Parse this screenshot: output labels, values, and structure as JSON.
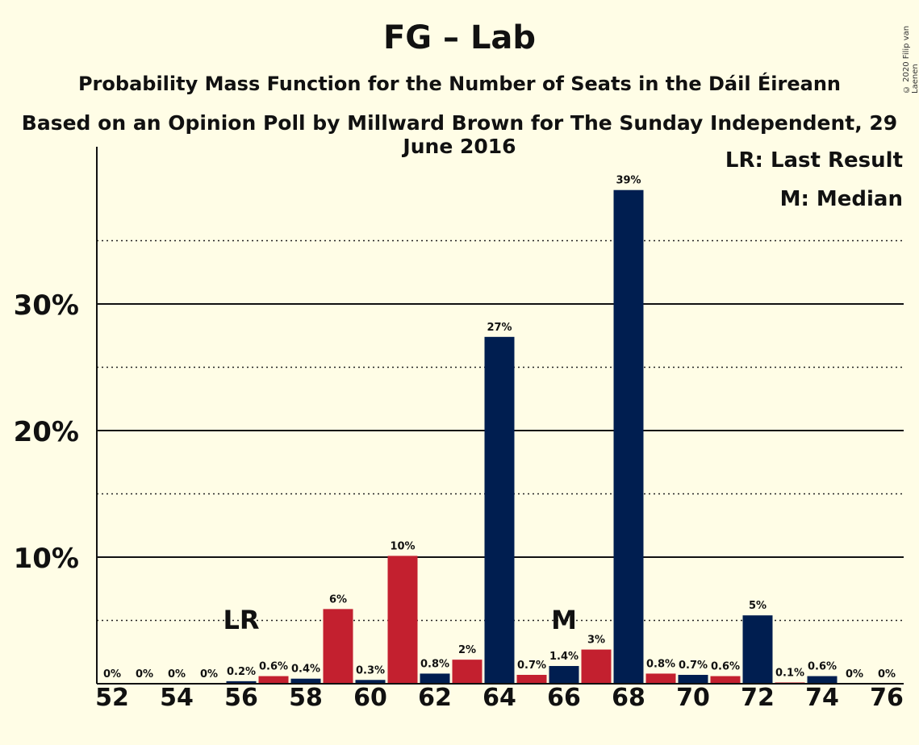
{
  "chart_data": {
    "type": "bar",
    "title": "FG – Lab",
    "subtitle": "Probability Mass Function for the Number of Seats in the Dáil Éireann",
    "subtitle2": "Based on an Opinion Poll by Millward Brown for The Sunday Independent, 29 June 2016",
    "copyright": "© 2020 Filip van Laenen",
    "legend": {
      "lr": "LR: Last Result",
      "m": "M: Median",
      "placement": "top-right"
    },
    "ylim": [
      0,
      42
    ],
    "yticks": [
      {
        "value": 10,
        "label": "10%"
      },
      {
        "value": 20,
        "label": "20%"
      },
      {
        "value": 30,
        "label": "30%"
      }
    ],
    "minor_gridlines": [
      5,
      15,
      25,
      35
    ],
    "xticks": [
      "52",
      "54",
      "56",
      "58",
      "60",
      "62",
      "64",
      "66",
      "68",
      "70",
      "72",
      "74",
      "76"
    ],
    "colors": {
      "even": "#001E50",
      "odd": "#C3202F",
      "background": "#FFFDE6"
    },
    "bars": [
      {
        "x": 52,
        "value": 0,
        "label": "0%"
      },
      {
        "x": 53,
        "value": 0,
        "label": "0%"
      },
      {
        "x": 54,
        "value": 0,
        "label": "0%"
      },
      {
        "x": 55,
        "value": 0,
        "label": "0%"
      },
      {
        "x": 56,
        "value": 0.2,
        "label": "0.2%"
      },
      {
        "x": 57,
        "value": 0.6,
        "label": "0.6%"
      },
      {
        "x": 58,
        "value": 0.4,
        "label": "0.4%"
      },
      {
        "x": 59,
        "value": 5.9,
        "label": "6%"
      },
      {
        "x": 60,
        "value": 0.3,
        "label": "0.3%"
      },
      {
        "x": 61,
        "value": 10.1,
        "label": "10%"
      },
      {
        "x": 62,
        "value": 0.8,
        "label": "0.8%"
      },
      {
        "x": 63,
        "value": 1.9,
        "label": "2%"
      },
      {
        "x": 64,
        "value": 27.4,
        "label": "27%"
      },
      {
        "x": 65,
        "value": 0.7,
        "label": "0.7%"
      },
      {
        "x": 66,
        "value": 1.4,
        "label": "1.4%"
      },
      {
        "x": 67,
        "value": 2.7,
        "label": "3%"
      },
      {
        "x": 68,
        "value": 39.0,
        "label": "39%"
      },
      {
        "x": 69,
        "value": 0.8,
        "label": "0.8%"
      },
      {
        "x": 70,
        "value": 0.7,
        "label": "0.7%"
      },
      {
        "x": 71,
        "value": 0.6,
        "label": "0.6%"
      },
      {
        "x": 72,
        "value": 5.4,
        "label": "5%"
      },
      {
        "x": 73,
        "value": 0.1,
        "label": "0.1%"
      },
      {
        "x": 74,
        "value": 0.6,
        "label": "0.6%"
      },
      {
        "x": 75,
        "value": 0,
        "label": "0%"
      },
      {
        "x": 76,
        "value": 0,
        "label": "0%"
      }
    ],
    "markers": [
      {
        "x": 56,
        "text": "LR"
      },
      {
        "x": 66,
        "text": "M"
      }
    ]
  }
}
